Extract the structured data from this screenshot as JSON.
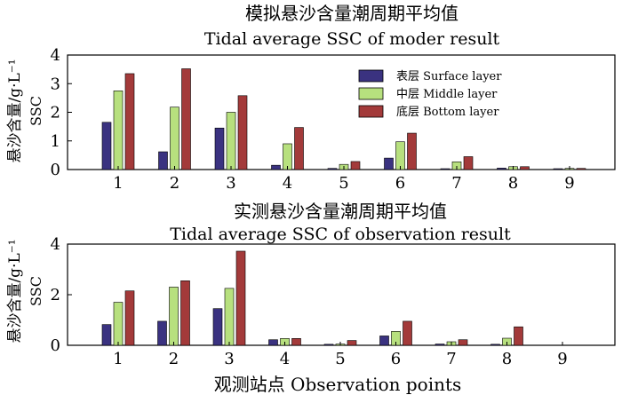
{
  "figure": {
    "xlabel": "观测站点 Observation points"
  },
  "legend": {
    "entries": [
      {
        "label": "表层 Surface layer",
        "color": "#3a3280"
      },
      {
        "label": "中层 Middle layer",
        "color": "#b7e07e"
      },
      {
        "label": "底层 Bottom layer",
        "color": "#a33a3a"
      }
    ]
  },
  "chart_data": [
    {
      "type": "bar",
      "title_cn": "模拟悬沙含量潮周期平均值",
      "title": "Tidal average SSC of moder result",
      "ylabel_cn": "悬沙含量/g·L⁻¹",
      "ylabel": "SSC",
      "categories": [
        "1",
        "2",
        "3",
        "4",
        "5",
        "6",
        "7",
        "8",
        "9"
      ],
      "ylim": [
        0,
        4
      ],
      "yticks": [
        "0",
        "1",
        "2",
        "3",
        "4"
      ],
      "legend_position": "top-right",
      "series": [
        {
          "name": "表层 Surface layer",
          "values": [
            1.65,
            0.62,
            1.45,
            0.15,
            0.04,
            0.4,
            0.03,
            0.05,
            0.03
          ]
        },
        {
          "name": "中层 Middle layer",
          "values": [
            2.75,
            2.18,
            2.0,
            0.9,
            0.18,
            0.97,
            0.27,
            0.1,
            0.04
          ]
        },
        {
          "name": "底层 Bottom layer",
          "values": [
            3.35,
            3.52,
            2.58,
            1.47,
            0.28,
            1.27,
            0.45,
            0.1,
            0.04
          ]
        }
      ]
    },
    {
      "type": "bar",
      "title_cn": "实测悬沙含量潮周期平均值",
      "title": "Tidal average SSC of observation  result",
      "ylabel_cn": "悬沙含量/g·L⁻¹",
      "ylabel": "SSC",
      "categories": [
        "1",
        "2",
        "3",
        "4",
        "5",
        "6",
        "7",
        "8",
        "9"
      ],
      "ylim": [
        0,
        4
      ],
      "yticks": [
        "0",
        "2",
        "4"
      ],
      "series": [
        {
          "name": "表层 Surface layer",
          "values": [
            0.82,
            0.95,
            1.45,
            0.22,
            0.04,
            0.37,
            0.05,
            0.04,
            0
          ]
        },
        {
          "name": "中层 Middle layer",
          "values": [
            1.7,
            2.3,
            2.25,
            0.27,
            0.05,
            0.55,
            0.14,
            0.28,
            0
          ]
        },
        {
          "name": "底层 Bottom layer",
          "values": [
            2.15,
            2.55,
            3.72,
            0.27,
            0.19,
            0.95,
            0.22,
            0.73,
            0
          ]
        }
      ]
    }
  ]
}
